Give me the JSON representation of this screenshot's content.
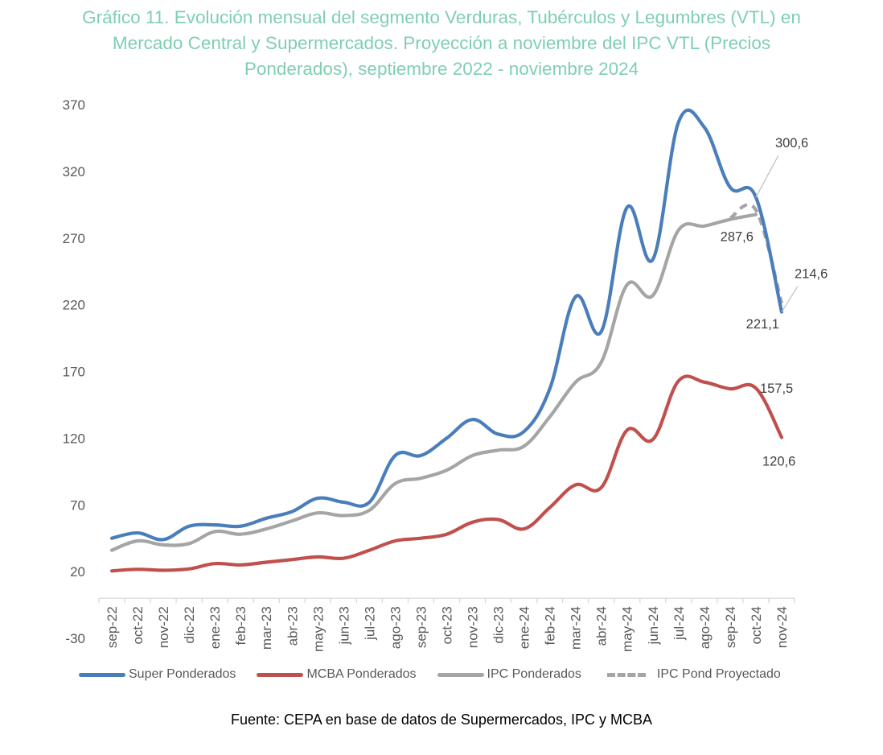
{
  "chart_data": {
    "type": "line",
    "title": "Gráfico 11. Evolución mensual del segmento Verduras, Tubérculos y Legumbres (VTL) en Mercado Central y Supermercados. Proyección a noviembre del IPC VTL (Precios Ponderados), septiembre 2022 - noviembre 2024",
    "title_lines": [
      "Gráfico 11. Evolución mensual del segmento Verduras, Tubérculos y Legumbres (VTL) en",
      "Mercado Central y Supermercados. Proyección a noviembre del IPC VTL (Precios",
      "Ponderados), septiembre 2022 - noviembre 2024"
    ],
    "xlabel": "",
    "ylabel": "",
    "ylim": [
      -30,
      370
    ],
    "yticks": [
      -30,
      20,
      70,
      120,
      170,
      220,
      270,
      320,
      370
    ],
    "grid": false,
    "legend_position": "bottom",
    "categories": [
      "sep-22",
      "oct-22",
      "nov-22",
      "dic-22",
      "ene-23",
      "feb-23",
      "mar-23",
      "abr-23",
      "may-23",
      "jun-23",
      "jul-23",
      "ago-23",
      "sep-23",
      "oct-23",
      "nov-23",
      "dic-23",
      "ene-24",
      "feb-24",
      "mar-24",
      "abr-24",
      "may-24",
      "jun-24",
      "jul-24",
      "ago-24",
      "sep-24",
      "oct-24",
      "nov-24"
    ],
    "series": [
      {
        "name": "Super Ponderados",
        "color": "#4a7ebb",
        "style": "solid",
        "values": [
          45,
          49,
          44,
          54,
          55,
          54,
          60,
          65,
          75,
          72,
          72,
          107,
          107,
          120,
          134,
          123,
          125,
          157,
          226,
          200,
          293,
          254,
          357,
          353,
          308,
          300.6,
          214.6
        ]
      },
      {
        "name": "MCBA Ponderados",
        "color": "#c0504d",
        "style": "solid",
        "values": [
          20.5,
          21.7,
          21,
          22,
          26,
          25,
          27,
          29,
          31,
          30,
          36,
          43,
          45,
          48,
          57,
          59,
          52,
          68,
          85,
          83,
          126,
          119,
          163,
          162,
          157,
          157.5,
          120.6
        ]
      },
      {
        "name": "IPC Ponderados",
        "color": "#a5a5a5",
        "style": "solid",
        "values": [
          36,
          43,
          40,
          41,
          50,
          48,
          52,
          58,
          64,
          62,
          66,
          86,
          90,
          96,
          107,
          111,
          114,
          136,
          162,
          177,
          235,
          227,
          276,
          279,
          284,
          287.6,
          null
        ]
      },
      {
        "name": "IPC Pond Proyectado",
        "color": "#a5a5a5",
        "style": "dashed",
        "values": [
          null,
          null,
          null,
          null,
          null,
          null,
          null,
          null,
          null,
          null,
          null,
          null,
          null,
          null,
          null,
          null,
          null,
          null,
          null,
          null,
          null,
          null,
          null,
          null,
          285,
          291,
          221.1
        ]
      }
    ],
    "annotations": [
      {
        "text": "300,6",
        "series": "Super Ponderados",
        "category": "oct-24"
      },
      {
        "text": "287,6",
        "series": "IPC Ponderados",
        "category": "oct-24"
      },
      {
        "text": "214,6",
        "series": "Super Ponderados",
        "category": "nov-24"
      },
      {
        "text": "221,1",
        "series": "IPC Pond Proyectado",
        "category": "nov-24"
      },
      {
        "text": "157,5",
        "series": "MCBA Ponderados",
        "category": "oct-24"
      },
      {
        "text": "120,6",
        "series": "MCBA Ponderados",
        "category": "nov-24"
      }
    ]
  },
  "legend": [
    {
      "label": "Super Ponderados",
      "color": "#4a7ebb",
      "style": "solid"
    },
    {
      "label": "MCBA Ponderados",
      "color": "#c0504d",
      "style": "solid"
    },
    {
      "label": "IPC Ponderados",
      "color": "#a5a5a5",
      "style": "solid"
    },
    {
      "label": "IPC Pond Proyectado",
      "color": "#a5a5a5",
      "style": "dashed"
    }
  ],
  "source": "Fuente: CEPA en base de datos de Supermercados, IPC y MCBA"
}
